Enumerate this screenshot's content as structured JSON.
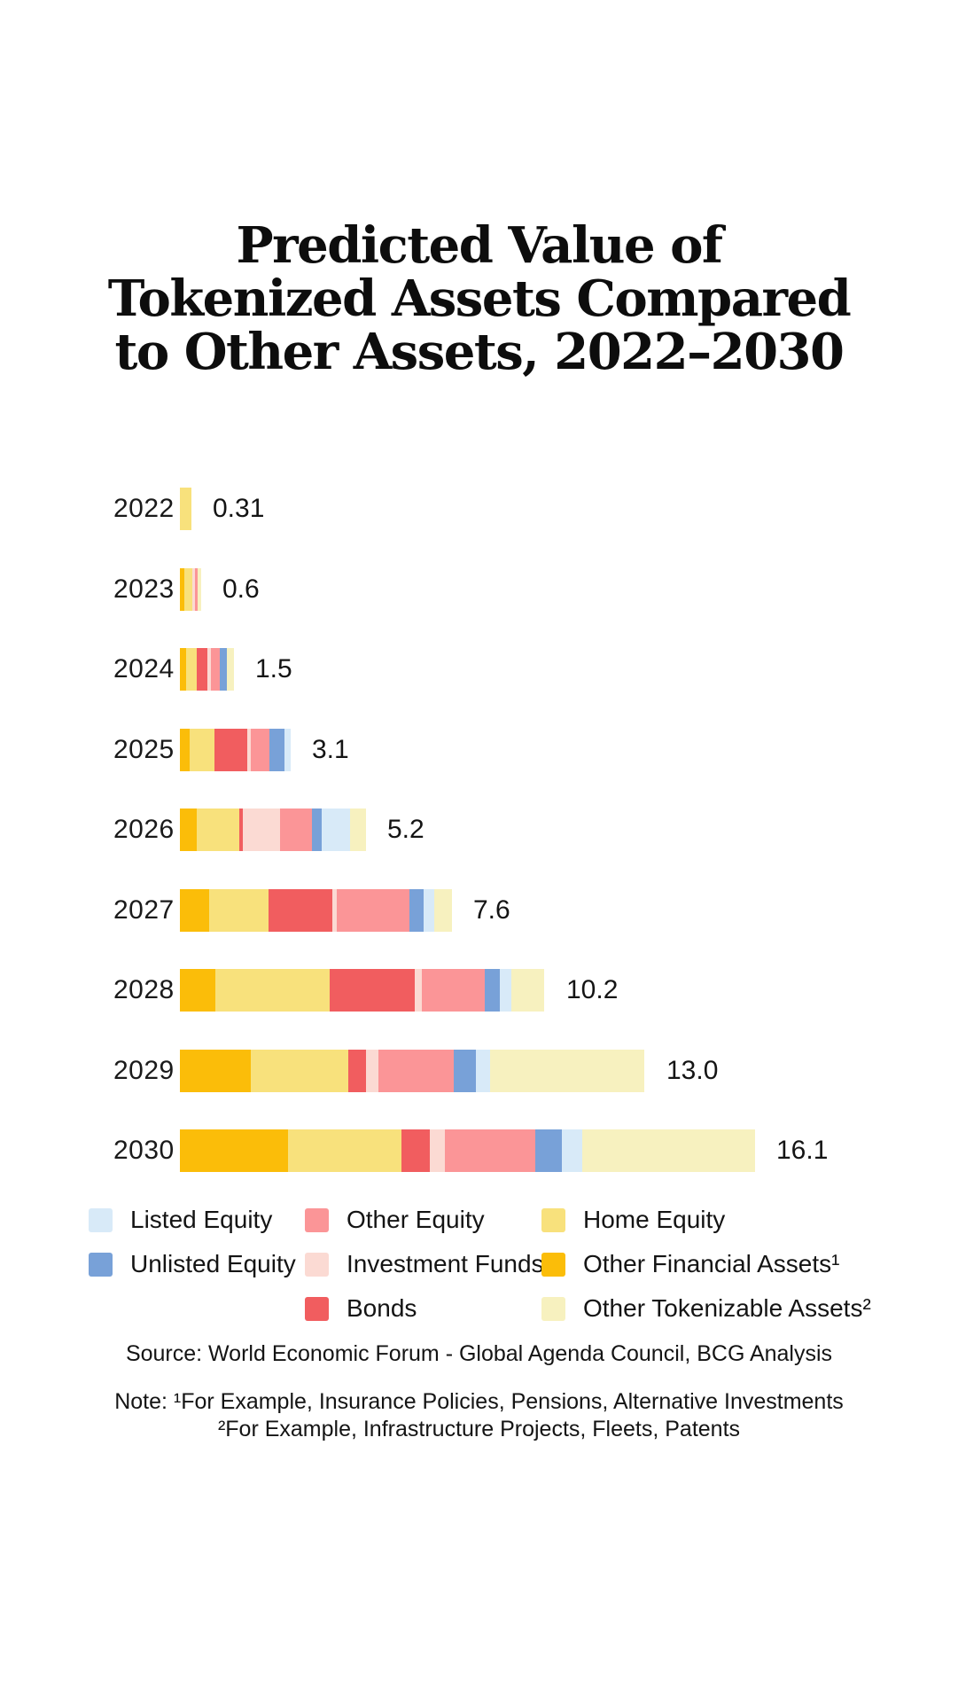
{
  "title": {
    "lines": [
      "Predicted Value of",
      "Tokenized Assets Compared",
      "to Other Assets, 2022–2030"
    ]
  },
  "colors": {
    "background": "#ffffff",
    "text": "#141414",
    "listed_equity": "#D8EAF8",
    "other_equity": "#FB9597",
    "home_equity": "#F8E17C",
    "unlisted_equity": "#78A1D8",
    "investment_funds": "#FBDAD3",
    "other_financial_assets": "#FBBD09",
    "bonds": "#F15D5F",
    "other_tokenizable_assets": "#F7F1BF"
  },
  "chart_data": {
    "type": "bar",
    "orientation": "horizontal",
    "stacked": true,
    "unit": "USD trillions",
    "title": "Predicted Value of Tokenized Assets Compared to Other Assets, 2022–2030",
    "categories": [
      "2022",
      "2023",
      "2024",
      "2025",
      "2026",
      "2027",
      "2028",
      "2029",
      "2030"
    ],
    "totals": [
      0.31,
      0.6,
      1.5,
      3.1,
      5.2,
      7.6,
      10.2,
      13.0,
      16.1
    ],
    "total_labels": [
      "0.31",
      "0.6",
      "1.5",
      "3.1",
      "5.2",
      "7.6",
      "10.2",
      "13.0",
      "16.1"
    ],
    "axis": {
      "x_hidden": true,
      "gridlines": false,
      "value_labels_at_bar_end": true
    },
    "series": [
      {
        "name": "Other Financial Assets¹",
        "key": "other_financial_assets",
        "values": [
          0,
          0.13,
          0.17,
          0.26,
          0.48,
          0.82,
          0.99,
          1.98,
          3.02
        ]
      },
      {
        "name": "Home Equity",
        "key": "home_equity",
        "values": [
          0.31,
          0.22,
          0.3,
          0.7,
          1.18,
          1.66,
          3.19,
          2.72,
          3.17
        ]
      },
      {
        "name": "Bonds",
        "key": "bonds",
        "values": [
          0,
          0,
          0.3,
          0.93,
          0.1,
          1.78,
          2.38,
          0.5,
          0.79
        ]
      },
      {
        "name": "Investment Funds",
        "key": "investment_funds",
        "values": [
          0,
          0.07,
          0.1,
          0.1,
          1.03,
          0.12,
          0.22,
          0.35,
          0.42
        ]
      },
      {
        "name": "Other Equity",
        "key": "other_equity",
        "values": [
          0,
          0.07,
          0.25,
          0.52,
          0.9,
          2.03,
          1.76,
          2.1,
          2.55
        ]
      },
      {
        "name": "Unlisted Equity",
        "key": "unlisted_equity",
        "values": [
          0,
          0,
          0.2,
          0.41,
          0.28,
          0.4,
          0.42,
          0.62,
          0.74
        ]
      },
      {
        "name": "Listed Equity",
        "key": "listed_equity",
        "values": [
          0,
          0,
          0,
          0.18,
          0.8,
          0.3,
          0.32,
          0.4,
          0.57
        ]
      },
      {
        "name": "Other Tokenizable Assets²",
        "key": "other_tokenizable_assets",
        "values": [
          0,
          0.11,
          0.18,
          0,
          0.43,
          0.5,
          0.92,
          4.33,
          4.83
        ]
      }
    ],
    "legend_position": "bottom"
  },
  "legend": {
    "rows": [
      [
        {
          "label": "Listed Equity",
          "key": "listed_equity",
          "col": 0
        },
        {
          "label": "Other Equity",
          "key": "other_equity",
          "col": 1
        },
        {
          "label": "Home Equity",
          "key": "home_equity",
          "col": 2
        }
      ],
      [
        {
          "label": "Unlisted Equity",
          "key": "unlisted_equity",
          "col": 0
        },
        {
          "label": "Investment Funds",
          "key": "investment_funds",
          "col": 1
        },
        {
          "label": "Other Financial Assets¹",
          "key": "other_financial_assets",
          "col": 2
        }
      ],
      [
        {
          "label": "Bonds",
          "key": "bonds",
          "col": 1
        },
        {
          "label": "Other Tokenizable Assets²",
          "key": "other_tokenizable_assets",
          "col": 2
        }
      ]
    ]
  },
  "source": "Source: World Economic Forum - Global Agenda Council, BCG Analysis",
  "notes": [
    "Note: ¹For Example, Insurance Policies, Pensions, Alternative Investments",
    "²For Example, Infrastructure Projects, Fleets, Patents"
  ]
}
